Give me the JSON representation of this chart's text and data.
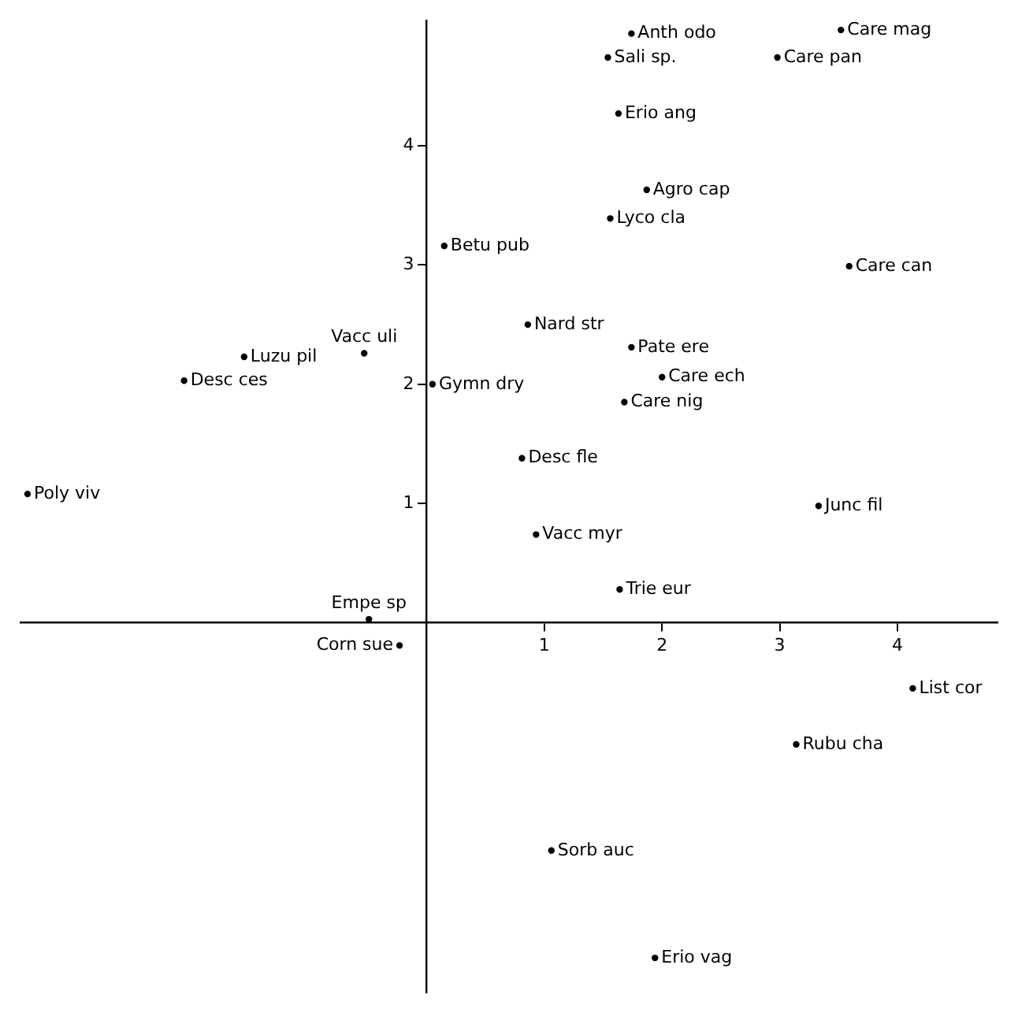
{
  "chart_data": {
    "type": "scatter",
    "xlim": [
      -3.45,
      4.85
    ],
    "ylim": [
      -3.1,
      5.05
    ],
    "xticks": [
      1,
      2,
      3,
      4
    ],
    "yticks": [
      1,
      2,
      3,
      4
    ],
    "grid": false,
    "legend": false,
    "marker": "circle",
    "series": [
      {
        "name": "Anth odo",
        "color": "#000000",
        "x": [
          1.74
        ],
        "values": [
          4.94
        ]
      },
      {
        "name": "Care mag",
        "color": "#000000",
        "x": [
          3.52
        ],
        "values": [
          4.97
        ]
      },
      {
        "name": "Sali sp.",
        "color": "#000000",
        "x": [
          1.54
        ],
        "values": [
          4.74
        ]
      },
      {
        "name": "Care pan",
        "color": "#000000",
        "x": [
          2.98
        ],
        "values": [
          4.74
        ]
      },
      {
        "name": "Erio ang",
        "color": "#000000",
        "x": [
          1.63
        ],
        "values": [
          4.27
        ]
      },
      {
        "name": "Agro cap",
        "color": "#000000",
        "x": [
          1.87
        ],
        "values": [
          3.63
        ]
      },
      {
        "name": "Lyco cla",
        "color": "#000000",
        "x": [
          1.56
        ],
        "values": [
          3.39
        ]
      },
      {
        "name": "Betu pub",
        "color": "#000000",
        "x": [
          0.15
        ],
        "values": [
          3.16
        ]
      },
      {
        "name": "Care can",
        "color": "#000000",
        "x": [
          3.59
        ],
        "values": [
          2.99
        ]
      },
      {
        "name": "Nard str",
        "color": "#000000",
        "x": [
          0.86
        ],
        "values": [
          2.5
        ]
      },
      {
        "name": "Pate ere",
        "color": "#000000",
        "x": [
          1.74
        ],
        "values": [
          2.31
        ]
      },
      {
        "name": "Care ech",
        "color": "#000000",
        "x": [
          2.0
        ],
        "values": [
          2.06
        ]
      },
      {
        "name": "Care nig",
        "color": "#000000",
        "x": [
          1.68
        ],
        "values": [
          1.85
        ]
      },
      {
        "name": "Desc fle",
        "color": "#000000",
        "x": [
          0.81
        ],
        "values": [
          1.38
        ]
      },
      {
        "name": "Junc fil",
        "color": "#000000",
        "x": [
          3.33
        ],
        "values": [
          0.98
        ]
      },
      {
        "name": "Luzu pil",
        "color": "#000000",
        "x": [
          -1.55
        ],
        "values": [
          2.23
        ]
      },
      {
        "name": "Vacc uli",
        "color": "#000000",
        "x": [
          -0.53
        ],
        "values": [
          2.26
        ]
      },
      {
        "name": "Desc ces",
        "color": "#000000",
        "x": [
          -2.06
        ],
        "values": [
          2.03
        ]
      },
      {
        "name": "Gymn dry",
        "color": "#000000",
        "x": [
          0.05
        ],
        "values": [
          2.0
        ]
      },
      {
        "name": "Poly viv",
        "color": "#000000",
        "x": [
          -3.39
        ],
        "values": [
          1.08
        ]
      },
      {
        "name": "Vacc myr",
        "color": "#000000",
        "x": [
          0.93
        ],
        "values": [
          0.74
        ]
      },
      {
        "name": "Trie eur",
        "color": "#000000",
        "x": [
          1.64
        ],
        "values": [
          0.28
        ]
      },
      {
        "name": "Empe sp",
        "color": "#000000",
        "x": [
          -0.49
        ],
        "values": [
          0.03
        ]
      },
      {
        "name": "Corn sue",
        "color": "#000000",
        "x": [
          -0.23
        ],
        "values": [
          -0.19
        ]
      },
      {
        "name": "List cor",
        "color": "#000000",
        "x": [
          4.13
        ],
        "values": [
          -0.55
        ]
      },
      {
        "name": "Rubu cha",
        "color": "#000000",
        "x": [
          3.14
        ],
        "values": [
          -1.02
        ]
      },
      {
        "name": "Sorb auc",
        "color": "#000000",
        "x": [
          1.06
        ],
        "values": [
          -1.91
        ]
      },
      {
        "name": "Erio vag",
        "color": "#000000",
        "x": [
          1.94
        ],
        "values": [
          -2.81
        ]
      }
    ]
  }
}
